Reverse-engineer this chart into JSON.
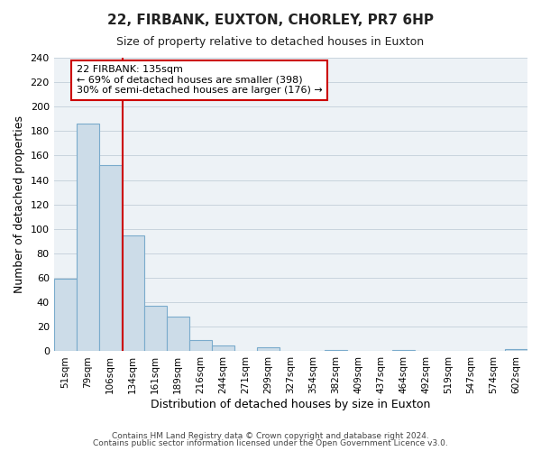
{
  "title": "22, FIRBANK, EUXTON, CHORLEY, PR7 6HP",
  "subtitle": "Size of property relative to detached houses in Euxton",
  "xlabel": "Distribution of detached houses by size in Euxton",
  "ylabel": "Number of detached properties",
  "bar_labels": [
    "51sqm",
    "79sqm",
    "106sqm",
    "134sqm",
    "161sqm",
    "189sqm",
    "216sqm",
    "244sqm",
    "271sqm",
    "299sqm",
    "327sqm",
    "354sqm",
    "382sqm",
    "409sqm",
    "437sqm",
    "464sqm",
    "492sqm",
    "519sqm",
    "547sqm",
    "574sqm",
    "602sqm"
  ],
  "bar_values": [
    59,
    186,
    152,
    95,
    37,
    28,
    9,
    5,
    0,
    3,
    0,
    0,
    1,
    0,
    0,
    1,
    0,
    0,
    0,
    0,
    2
  ],
  "bar_color": "#ccdce8",
  "bar_edge_color": "#7aabcc",
  "vline_index": 2.55,
  "vline_color": "#cc0000",
  "annotation_text": "22 FIRBANK: 135sqm\n← 69% of detached houses are smaller (398)\n30% of semi-detached houses are larger (176) →",
  "annotation_box_facecolor": "#ffffff",
  "annotation_box_edgecolor": "#cc0000",
  "ylim": [
    0,
    240
  ],
  "yticks": [
    0,
    20,
    40,
    60,
    80,
    100,
    120,
    140,
    160,
    180,
    200,
    220,
    240
  ],
  "footer1": "Contains HM Land Registry data © Crown copyright and database right 2024.",
  "footer2": "Contains public sector information licensed under the Open Government Licence v3.0.",
  "grid_color": "#c8d4dd",
  "bg_color": "#edf2f6",
  "title_fontsize": 11,
  "subtitle_fontsize": 9,
  "ylabel_fontsize": 9,
  "xlabel_fontsize": 9,
  "tick_fontsize": 8,
  "xtick_fontsize": 7.5,
  "footer_fontsize": 6.5
}
